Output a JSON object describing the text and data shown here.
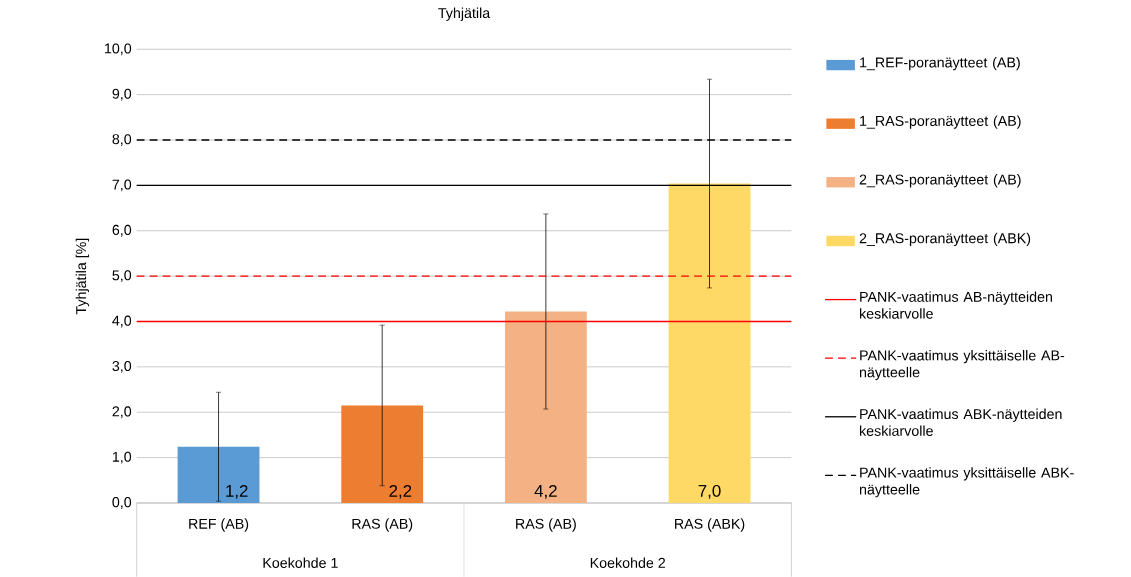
{
  "chart_data": {
    "type": "bar",
    "title": "Tyhjätila",
    "ylabel": "Tyhjätila [%]",
    "categories": [
      "REF (AB)",
      "RAS (AB)",
      "RAS (AB)",
      "RAS (ABK)"
    ],
    "annotations": [
      "Koekohde 1",
      "Koekohde 2"
    ],
    "series": [
      {
        "name": "1_REF-poranäytteet (AB)",
        "color": "#5b9bd5",
        "values": [
          1.24,
          null,
          null,
          null
        ],
        "errors": [
          1.2,
          null,
          null,
          null
        ],
        "value_labels": [
          "1,2",
          null,
          null,
          null
        ]
      },
      {
        "name": "1_RAS-poranäytteet (AB)",
        "color": "#ed7d31",
        "values": [
          null,
          2.15,
          null,
          null
        ],
        "errors": [
          null,
          1.77,
          null,
          null
        ],
        "value_labels": [
          null,
          "2,2",
          null,
          null
        ]
      },
      {
        "name": "2_RAS-poranäytteet (AB)",
        "color": "#f4b183",
        "values": [
          null,
          null,
          4.22,
          null
        ],
        "errors": [
          null,
          null,
          2.15,
          null
        ],
        "value_labels": [
          null,
          null,
          "4,2",
          null
        ]
      },
      {
        "name": "2_RAS-poranäytteet (ABK)",
        "color": "#ffd966",
        "values": [
          null,
          null,
          null,
          7.04
        ],
        "errors": [
          null,
          null,
          null,
          2.3
        ],
        "value_labels": [
          null,
          null,
          null,
          "7,0"
        ]
      }
    ],
    "ref_lines": [
      {
        "axis": "y",
        "value": 4,
        "label": "PANK-vaatimus AB-näytteiden keskiarvolle",
        "color": "#ff0000",
        "line_style": "solid"
      },
      {
        "axis": "y",
        "value": 5,
        "label": "PANK-vaatimus yksittäiselle AB-näytteelle",
        "color": "#ff0000",
        "line_style": "dashed"
      },
      {
        "axis": "y",
        "value": 7,
        "label": "PANK-vaatimus ABK-näytteiden keskiarvolle",
        "color": "#000000",
        "line_style": "solid"
      },
      {
        "axis": "y",
        "value": 8,
        "label": "PANK-vaatimus yksittäiselle ABK-näytteelle",
        "color": "#000000",
        "line_style": "dashed"
      }
    ],
    "ylim": [
      0,
      10
    ],
    "yticks": [
      {
        "value": 0,
        "label": "0,0"
      },
      {
        "value": 1,
        "label": "1,0"
      },
      {
        "value": 2,
        "label": "2,0"
      },
      {
        "value": 3,
        "label": "3,0"
      },
      {
        "value": 4,
        "label": "4,0"
      },
      {
        "value": 5,
        "label": "5,0"
      },
      {
        "value": 6,
        "label": "6,0"
      },
      {
        "value": 7,
        "label": "7,0"
      },
      {
        "value": 8,
        "label": "8,0"
      },
      {
        "value": 9,
        "label": "9,0"
      },
      {
        "value": 10,
        "label": "10,0"
      }
    ],
    "grid": "y",
    "legend": "right"
  }
}
